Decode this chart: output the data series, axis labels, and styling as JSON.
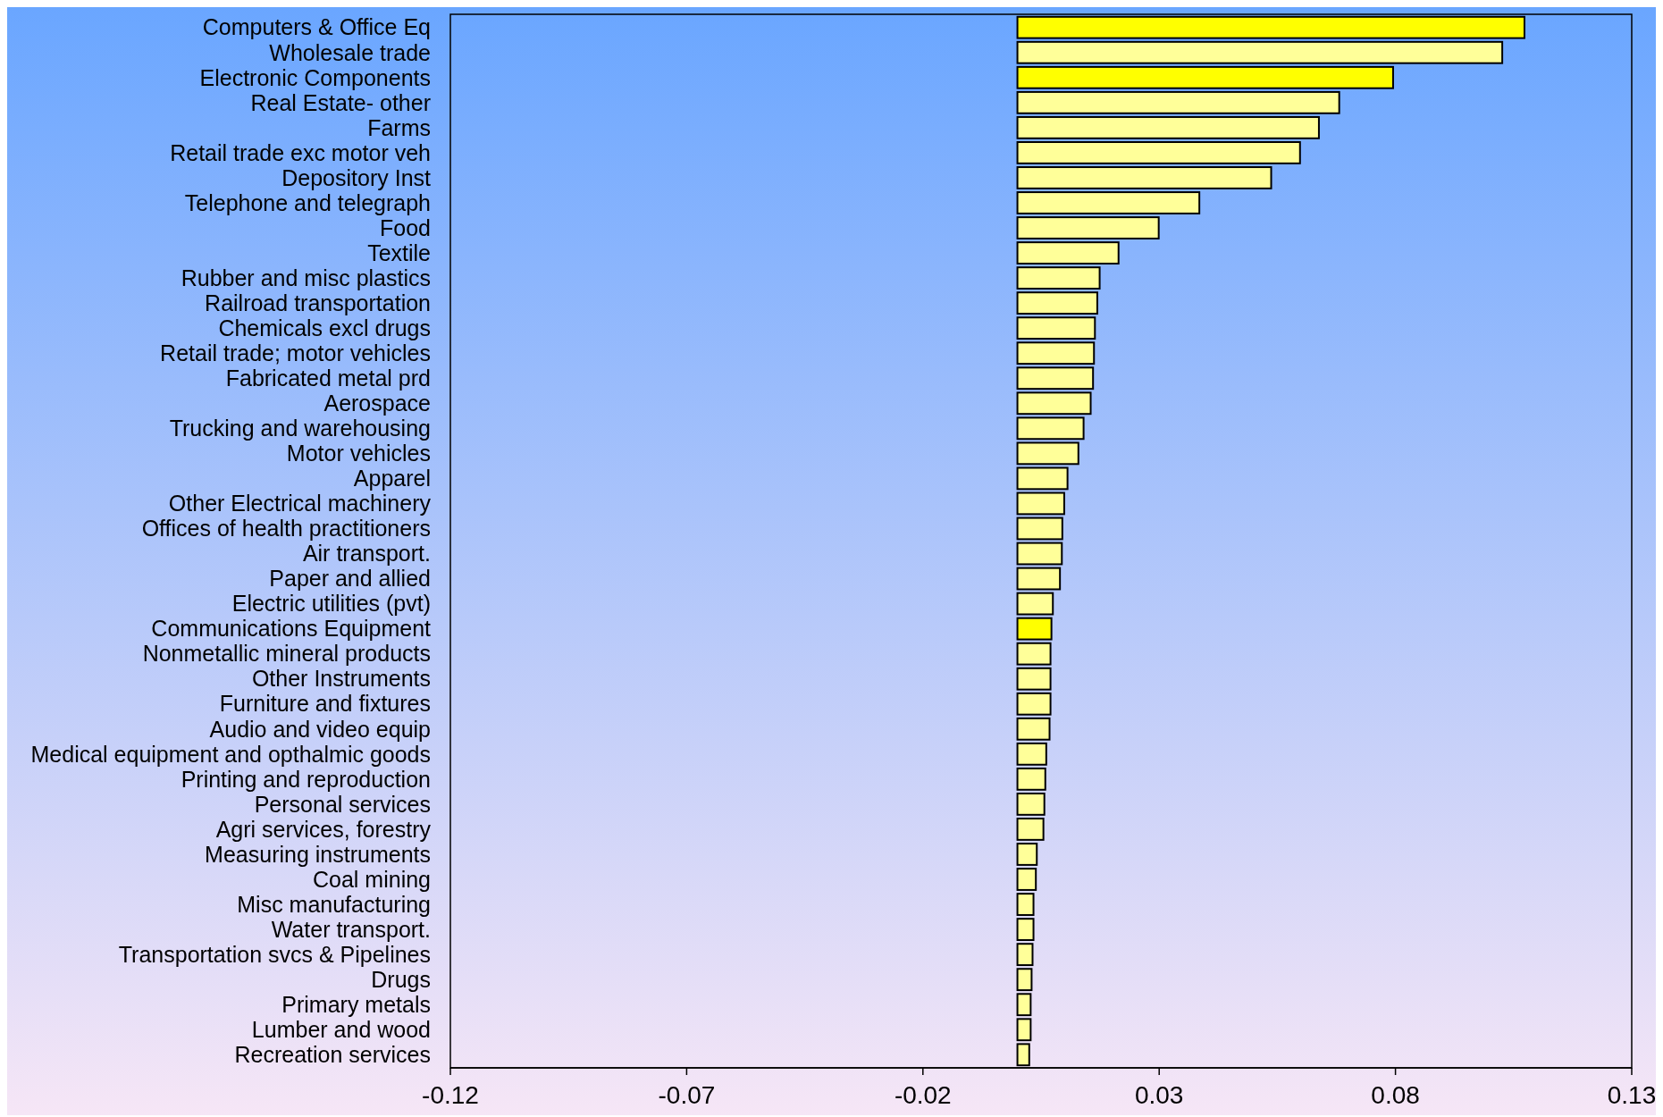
{
  "chart_data": {
    "type": "bar",
    "orientation": "horizontal",
    "categories": [
      "Computers & Office Eq",
      "Wholesale trade",
      "Electronic Components",
      "Real Estate- other",
      "Farms",
      "Retail trade exc motor veh",
      "Depository Inst",
      "Telephone and telegraph",
      "Food",
      "Textile",
      "Rubber and misc plastics",
      "Railroad transportation",
      "Chemicals excl drugs",
      "Retail trade; motor vehicles",
      "Fabricated metal prd",
      "Aerospace",
      "Trucking and warehousing",
      "Motor vehicles",
      "Apparel",
      "Other Electrical machinery",
      "Offices of health practitioners",
      "Air transport.",
      "Paper and allied",
      "Electric utilities (pvt)",
      "Communications Equipment",
      "Nonmetallic mineral products",
      "Other Instruments",
      "Furniture and fixtures",
      "Audio and video equip",
      "Medical equipment and opthalmic goods",
      "Printing and reproduction",
      "Personal services",
      "Agri services, forestry",
      "Measuring instruments",
      "Coal mining",
      "Misc manufacturing",
      "Water transport.",
      "Transportation svcs & Pipelines",
      "Drugs",
      "Primary metals",
      "Lumber and wood",
      "Recreation services"
    ],
    "values": [
      0.1073,
      0.1026,
      0.0795,
      0.0681,
      0.0638,
      0.0598,
      0.0537,
      0.0385,
      0.0299,
      0.0214,
      0.0174,
      0.0169,
      0.0164,
      0.0162,
      0.016,
      0.0155,
      0.014,
      0.0129,
      0.0106,
      0.0099,
      0.0095,
      0.0094,
      0.009,
      0.0075,
      0.0072,
      0.007,
      0.007,
      0.007,
      0.0068,
      0.0061,
      0.0059,
      0.0057,
      0.0055,
      0.0041,
      0.0039,
      0.0034,
      0.0034,
      0.0032,
      0.003,
      0.0028,
      0.0028,
      0.0025
    ],
    "colors": [
      "#ffff00",
      "#ffff99",
      "#ffff00",
      "#ffff99",
      "#ffff99",
      "#ffff99",
      "#ffff99",
      "#ffff99",
      "#ffff99",
      "#ffff99",
      "#ffff99",
      "#ffff99",
      "#ffff99",
      "#ffff99",
      "#ffff99",
      "#ffff99",
      "#ffff99",
      "#ffff99",
      "#ffff99",
      "#ffff99",
      "#ffff99",
      "#ffff99",
      "#ffff99",
      "#ffff99",
      "#ffff00",
      "#ffff99",
      "#ffff99",
      "#ffff99",
      "#ffff99",
      "#ffff99",
      "#ffff99",
      "#ffff99",
      "#ffff99",
      "#ffff99",
      "#ffff99",
      "#ffff99",
      "#ffff99",
      "#ffff99",
      "#ffff99",
      "#ffff99",
      "#ffff99",
      "#ffff99"
    ],
    "xlim": [
      -0.12,
      0.13
    ],
    "xticks": [
      -0.12,
      -0.07,
      -0.02,
      0.03,
      0.08,
      0.13
    ],
    "grid": false
  }
}
